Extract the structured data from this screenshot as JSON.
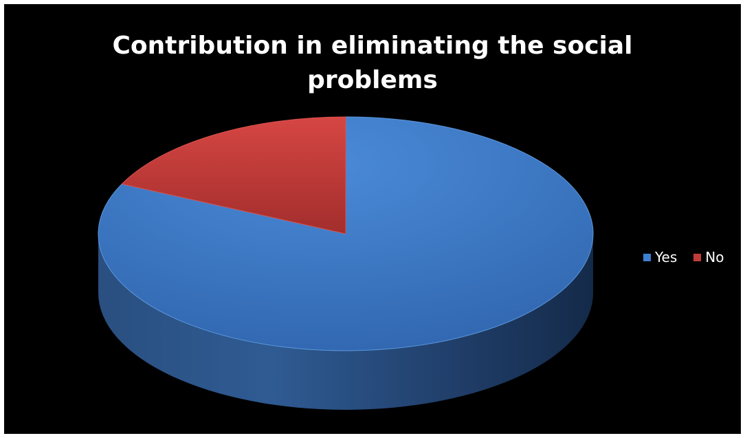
{
  "chart_data": {
    "type": "pie",
    "title_lines": [
      "Contribution in eliminating the social",
      "problems"
    ],
    "categories": [
      "Yes",
      "No"
    ],
    "values": [
      82,
      18
    ],
    "colors": [
      "#3f7fd0",
      "#c23b3a"
    ],
    "legend_position": "right"
  }
}
